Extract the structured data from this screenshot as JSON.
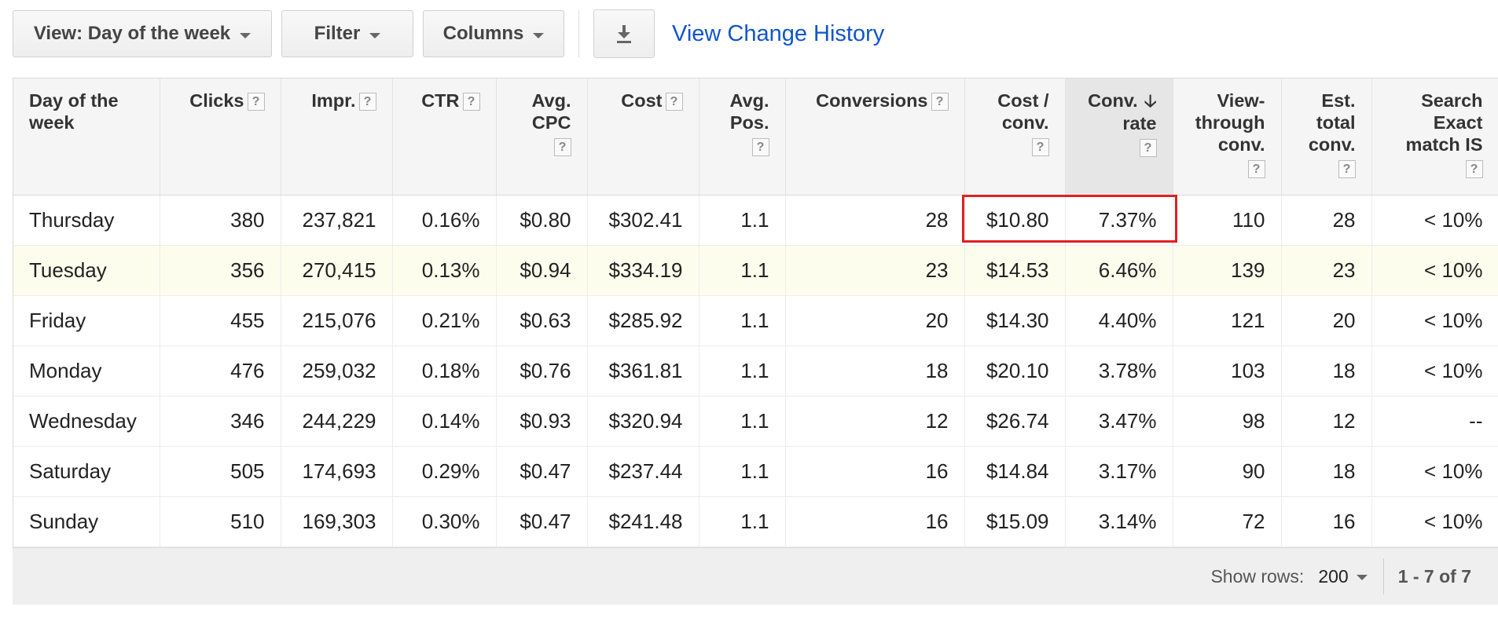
{
  "toolbar": {
    "view_label": "View: Day of the week",
    "filter_label": "Filter",
    "columns_label": "Columns",
    "history_link": "View Change History"
  },
  "table": {
    "headers": [
      {
        "lines": [
          "Day of the",
          "week"
        ],
        "help": false
      },
      {
        "lines": [
          "Clicks"
        ],
        "help": "inline"
      },
      {
        "lines": [
          "Impr."
        ],
        "help": "inline"
      },
      {
        "lines": [
          "CTR"
        ],
        "help": "inline"
      },
      {
        "lines": [
          "Avg.",
          "CPC"
        ],
        "help": "block"
      },
      {
        "lines": [
          "Cost"
        ],
        "help": "inline"
      },
      {
        "lines": [
          "Avg.",
          "Pos."
        ],
        "help": "block"
      },
      {
        "lines": [
          "Conversions"
        ],
        "help": "inline"
      },
      {
        "lines": [
          "Cost /",
          "conv."
        ],
        "help": "block"
      },
      {
        "lines": [
          "Conv.",
          "rate"
        ],
        "help": "block"
      },
      {
        "lines": [
          "View-",
          "through",
          "conv."
        ],
        "help": "block"
      },
      {
        "lines": [
          "Est.",
          "total",
          "conv."
        ],
        "help": "block"
      },
      {
        "lines": [
          "Search",
          "Exact",
          "match IS"
        ],
        "help": "block"
      }
    ],
    "help_glyph": "?",
    "sort_arrow": "🡣",
    "rows": [
      [
        "Thursday",
        "380",
        "237,821",
        "0.16%",
        "$0.80",
        "$302.41",
        "1.1",
        "28",
        "$10.80",
        "7.37%",
        "110",
        "28",
        "< 10%"
      ],
      [
        "Tuesday",
        "356",
        "270,415",
        "0.13%",
        "$0.94",
        "$334.19",
        "1.1",
        "23",
        "$14.53",
        "6.46%",
        "139",
        "23",
        "< 10%"
      ],
      [
        "Friday",
        "455",
        "215,076",
        "0.21%",
        "$0.63",
        "$285.92",
        "1.1",
        "20",
        "$14.30",
        "4.40%",
        "121",
        "20",
        "< 10%"
      ],
      [
        "Monday",
        "476",
        "259,032",
        "0.18%",
        "$0.76",
        "$361.81",
        "1.1",
        "18",
        "$20.10",
        "3.78%",
        "103",
        "18",
        "< 10%"
      ],
      [
        "Wednesday",
        "346",
        "244,229",
        "0.14%",
        "$0.93",
        "$320.94",
        "1.1",
        "12",
        "$26.74",
        "3.47%",
        "98",
        "12",
        "--"
      ],
      [
        "Saturday",
        "505",
        "174,693",
        "0.29%",
        "$0.47",
        "$237.44",
        "1.1",
        "16",
        "$14.84",
        "3.17%",
        "90",
        "18",
        "< 10%"
      ],
      [
        "Sunday",
        "510",
        "169,303",
        "0.30%",
        "$0.47",
        "$241.48",
        "1.1",
        "16",
        "$15.09",
        "3.14%",
        "72",
        "16",
        "< 10%"
      ]
    ]
  },
  "footer": {
    "show_rows_label": "Show rows:",
    "rows_value": "200",
    "range": "1 - 7 of 7"
  },
  "colors": {
    "link": "#1155cc",
    "highlight": "#e02020",
    "alt_row": "#fdfdee",
    "sorted_header": "#e6e6e6"
  }
}
